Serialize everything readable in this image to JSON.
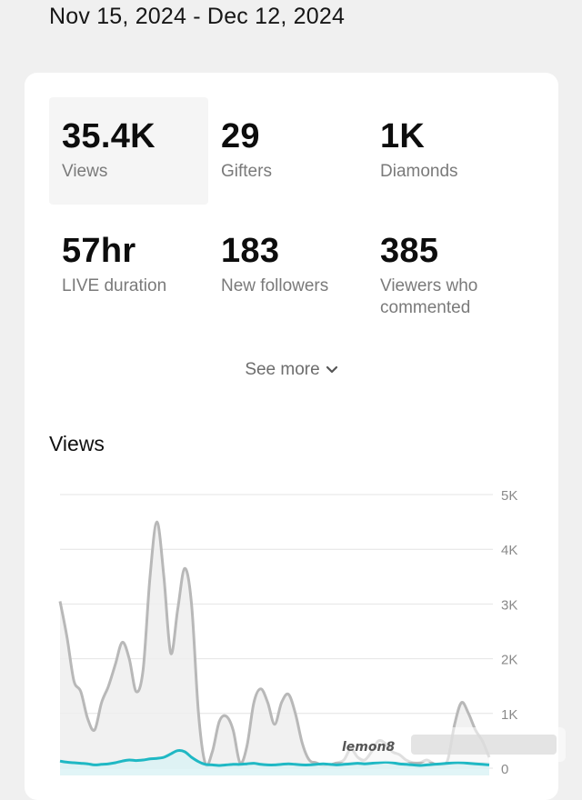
{
  "header": {
    "date_range": "Nov 15, 2024 - Dec 12, 2024"
  },
  "stats": [
    {
      "value": "35.4K",
      "label": "Views",
      "selected": true
    },
    {
      "value": "29",
      "label": "Gifters"
    },
    {
      "value": "1K",
      "label": "Diamonds"
    },
    {
      "value": "57hr",
      "label": "LIVE duration"
    },
    {
      "value": "183",
      "label": "New followers"
    },
    {
      "value": "385",
      "label": "Viewers who commented"
    }
  ],
  "see_more": {
    "label": "See more"
  },
  "views_section": {
    "title": "Views"
  },
  "chart_data": {
    "type": "area",
    "title": "Views",
    "y_ticks": [
      "5K",
      "4K",
      "3K",
      "2K",
      "1K",
      "0"
    ],
    "ylim": [
      0,
      5000
    ],
    "grid": true,
    "x": [
      0,
      1,
      2,
      3,
      4,
      5,
      6,
      7,
      8,
      9,
      10,
      11,
      12,
      13,
      14,
      15,
      16,
      17,
      18,
      19,
      20,
      21,
      22,
      23,
      24,
      25,
      26,
      27,
      28,
      29,
      30,
      31,
      32,
      33,
      34,
      35,
      36,
      37,
      38,
      39,
      40,
      41,
      42,
      43,
      44,
      45,
      46,
      47,
      48,
      49,
      50,
      51,
      52,
      53,
      54,
      55,
      56,
      57,
      58,
      59,
      60,
      61,
      62
    ],
    "series": [
      {
        "values": [
          3050,
          2400,
          1600,
          1400,
          900,
          700,
          1200,
          1500,
          1900,
          2300,
          2000,
          1400,
          1800,
          3500,
          4500,
          3500,
          2100,
          2900,
          3650,
          3000,
          1000,
          80,
          300,
          850,
          950,
          700,
          100,
          400,
          1200,
          1450,
          1200,
          800,
          1200,
          1350,
          1000,
          450,
          150,
          100,
          50,
          60,
          100,
          150,
          350,
          200,
          150,
          300,
          500,
          450,
          300,
          250,
          150,
          100,
          100,
          150,
          80,
          70,
          150,
          800,
          1200,
          1000,
          700,
          500,
          200
        ],
        "color": "#b8b8b8"
      },
      {
        "values": [
          130,
          110,
          100,
          90,
          80,
          60,
          70,
          80,
          100,
          130,
          150,
          140,
          150,
          170,
          180,
          200,
          260,
          320,
          300,
          200,
          120,
          70,
          60,
          50,
          60,
          70,
          70,
          80,
          90,
          70,
          60,
          60,
          70,
          80,
          70,
          60,
          60,
          70,
          80,
          70,
          60,
          70,
          80,
          90,
          80,
          90,
          100,
          110,
          100,
          80,
          70,
          60,
          50,
          60,
          70,
          80,
          90,
          100,
          100,
          90,
          80,
          70,
          60
        ],
        "color": "#1fb8c4"
      }
    ]
  },
  "watermark": {
    "text": "lemon8"
  },
  "colors": {
    "views_line": "#b8b8b8",
    "secondary_line": "#1fb8c4",
    "grid": "#e4e4e4",
    "card": "#ffffff",
    "page": "#f0f0f0"
  }
}
